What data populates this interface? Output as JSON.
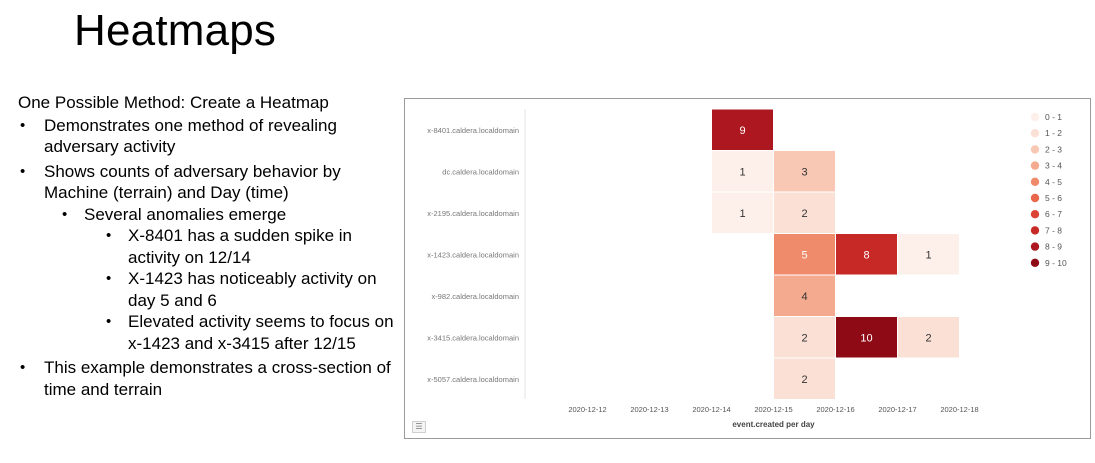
{
  "slide": {
    "title": "Heatmaps",
    "lead": "One Possible Method: Create a Heatmap",
    "b1": "Demonstrates one method of revealing adversary activity",
    "b2": "Shows counts of adversary behavior by Machine (terrain) and Day (time)",
    "b2a": "Several anomalies emerge",
    "b2a1": "X-8401 has a sudden spike in activity on 12/14",
    "b2a2": "X-1423 has noticeably activity on day 5 and 6",
    "b2a3": "Elevated activity seems to focus on x-1423 and x-3415 after 12/15",
    "b3": "This example demonstrates a cross-section of time and terrain",
    "bullet_glyph": "•"
  },
  "chart_data": {
    "type": "heatmap",
    "xlabel": "event.created per day",
    "x": [
      "2020-12-12",
      "2020-12-13",
      "2020-12-14",
      "2020-12-15",
      "2020-12-16",
      "2020-12-17",
      "2020-12-18"
    ],
    "y": [
      "x-8401.caldera.localdomain",
      "dc.caldera.localdomain",
      "x-2195.caldera.localdomain",
      "x-1423.caldera.localdomain",
      "x-982.caldera.localdomain",
      "x-3415.caldera.localdomain",
      "x-5057.caldera.localdomain"
    ],
    "cells": [
      {
        "x": "2020-12-14",
        "y": "x-8401.caldera.localdomain",
        "value": 9
      },
      {
        "x": "2020-12-14",
        "y": "dc.caldera.localdomain",
        "value": 1
      },
      {
        "x": "2020-12-15",
        "y": "dc.caldera.localdomain",
        "value": 3
      },
      {
        "x": "2020-12-14",
        "y": "x-2195.caldera.localdomain",
        "value": 1
      },
      {
        "x": "2020-12-15",
        "y": "x-2195.caldera.localdomain",
        "value": 2
      },
      {
        "x": "2020-12-15",
        "y": "x-1423.caldera.localdomain",
        "value": 5
      },
      {
        "x": "2020-12-16",
        "y": "x-1423.caldera.localdomain",
        "value": 8
      },
      {
        "x": "2020-12-17",
        "y": "x-1423.caldera.localdomain",
        "value": 1
      },
      {
        "x": "2020-12-15",
        "y": "x-982.caldera.localdomain",
        "value": 4
      },
      {
        "x": "2020-12-15",
        "y": "x-3415.caldera.localdomain",
        "value": 2
      },
      {
        "x": "2020-12-16",
        "y": "x-3415.caldera.localdomain",
        "value": 10
      },
      {
        "x": "2020-12-17",
        "y": "x-3415.caldera.localdomain",
        "value": 2
      },
      {
        "x": "2020-12-15",
        "y": "x-5057.caldera.localdomain",
        "value": 2
      }
    ],
    "legend": {
      "position": "right",
      "bins": [
        {
          "label": "0 - 1",
          "color": "#fdf0eb"
        },
        {
          "label": "1 - 2",
          "color": "#fbe0d5"
        },
        {
          "label": "2 - 3",
          "color": "#f8c8b4"
        },
        {
          "label": "3 - 4",
          "color": "#f4aa8e"
        },
        {
          "label": "4 - 5",
          "color": "#ef8a6a"
        },
        {
          "label": "5 - 6",
          "color": "#e9674b"
        },
        {
          "label": "6 - 7",
          "color": "#db4434"
        },
        {
          "label": "7 - 8",
          "color": "#c72a26"
        },
        {
          "label": "8 - 9",
          "color": "#ad1820"
        },
        {
          "label": "9 - 10",
          "color": "#8e0b16"
        }
      ]
    },
    "grid": false
  },
  "ui": {
    "menu_icon": "list-icon",
    "menu_glyph": "☰"
  }
}
